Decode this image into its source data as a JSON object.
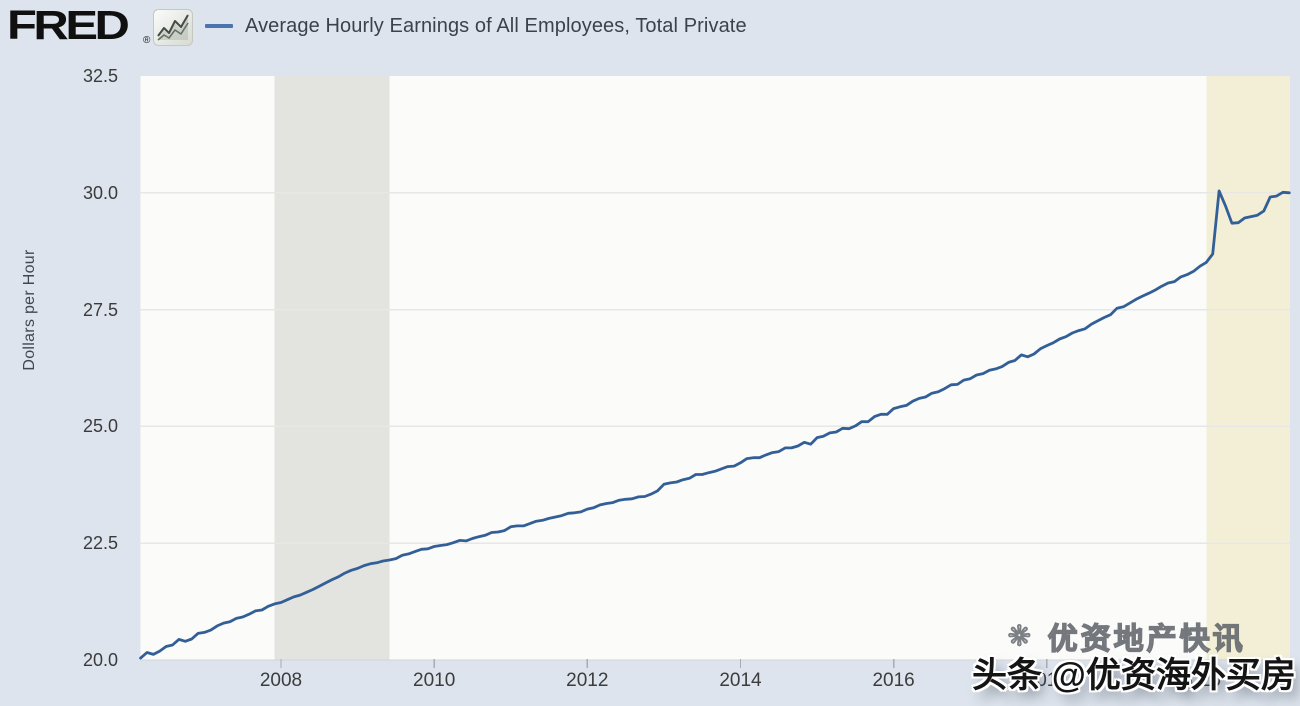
{
  "header": {
    "logo": "FRED",
    "registered": "®",
    "legend": {
      "series_label": "Average Hourly Earnings of All Employees, Total Private",
      "dash_color": "#4a74ab"
    }
  },
  "watermark": {
    "line1_icon": "❊",
    "line1": "优资地产快讯",
    "line2": "头条 @优资海外买房"
  },
  "colors": {
    "page_background": "#dde4ed",
    "plot_background": "#fbfbfa",
    "gridline": "#e7e8e6",
    "axis_line": "#d2d5d8",
    "tick_mark": "#a8adb3",
    "tick_text": "#3c3c3c"
  },
  "chart_data": {
    "type": "line",
    "title": "Average Hourly Earnings of All Employees, Total Private",
    "xlabel": "",
    "ylabel": "Dollars per Hour",
    "grid": true,
    "legend_position": "top",
    "line_color": "#335f97",
    "ylim": [
      20.0,
      32.5
    ],
    "y_ticks": [
      20.0,
      22.5,
      25.0,
      27.5,
      30.0,
      32.5
    ],
    "x_ticks": [
      2008,
      2010,
      2012,
      2014,
      2016,
      2018,
      2020
    ],
    "xlim_decimal_years": [
      2006.167,
      2021.175
    ],
    "recession_bands": [
      {
        "name": "great-recession",
        "start": 2007.917,
        "end": 2009.417,
        "color": "#e3e3e0"
      },
      {
        "name": "covid-recession",
        "start": 2020.083,
        "end": 2021.175,
        "color": "#f3efd7"
      }
    ],
    "series": [
      {
        "name": "Average Hourly Earnings of All Employees, Total Private",
        "units": "Dollars per Hour",
        "frequency": "monthly",
        "start_year": 2006,
        "start_month": 3,
        "values": [
          20.04,
          20.16,
          20.12,
          20.19,
          20.29,
          20.32,
          20.44,
          20.4,
          20.45,
          20.57,
          20.59,
          20.64,
          20.73,
          20.79,
          20.82,
          20.89,
          20.92,
          20.98,
          21.05,
          21.07,
          21.15,
          21.2,
          21.23,
          21.29,
          21.35,
          21.39,
          21.45,
          21.51,
          21.58,
          21.65,
          21.72,
          21.78,
          21.86,
          21.92,
          21.96,
          22.02,
          22.06,
          22.08,
          22.12,
          22.14,
          22.17,
          22.24,
          22.27,
          22.32,
          22.37,
          22.38,
          22.43,
          22.45,
          22.47,
          22.51,
          22.56,
          22.55,
          22.6,
          22.64,
          22.67,
          22.73,
          22.74,
          22.77,
          22.85,
          22.87,
          22.87,
          22.92,
          22.97,
          22.99,
          23.03,
          23.06,
          23.09,
          23.14,
          23.15,
          23.17,
          23.23,
          23.26,
          23.32,
          23.35,
          23.37,
          23.42,
          23.44,
          23.45,
          23.49,
          23.5,
          23.55,
          23.62,
          23.76,
          23.79,
          23.81,
          23.86,
          23.89,
          23.97,
          23.97,
          24.01,
          24.04,
          24.09,
          24.14,
          24.15,
          24.22,
          24.31,
          24.33,
          24.33,
          24.39,
          24.44,
          24.46,
          24.54,
          24.54,
          24.58,
          24.66,
          24.62,
          24.76,
          24.79,
          24.86,
          24.88,
          24.96,
          24.95,
          25.01,
          25.1,
          25.1,
          25.21,
          25.26,
          25.26,
          25.38,
          25.42,
          25.45,
          25.54,
          25.6,
          25.63,
          25.71,
          25.74,
          25.81,
          25.89,
          25.9,
          25.99,
          26.02,
          26.1,
          26.13,
          26.2,
          26.23,
          26.28,
          26.37,
          26.41,
          26.53,
          26.49,
          26.55,
          26.66,
          26.73,
          26.79,
          26.87,
          26.92,
          27.0,
          27.05,
          27.09,
          27.19,
          27.26,
          27.33,
          27.39,
          27.53,
          27.56,
          27.64,
          27.72,
          27.79,
          27.85,
          27.92,
          28.0,
          28.07,
          28.1,
          28.2,
          28.25,
          28.32,
          28.43,
          28.51,
          28.69,
          30.04,
          29.72,
          29.35,
          29.36,
          29.46,
          29.49,
          29.52,
          29.61,
          29.91,
          29.93,
          30.01,
          30.0
        ]
      }
    ]
  }
}
